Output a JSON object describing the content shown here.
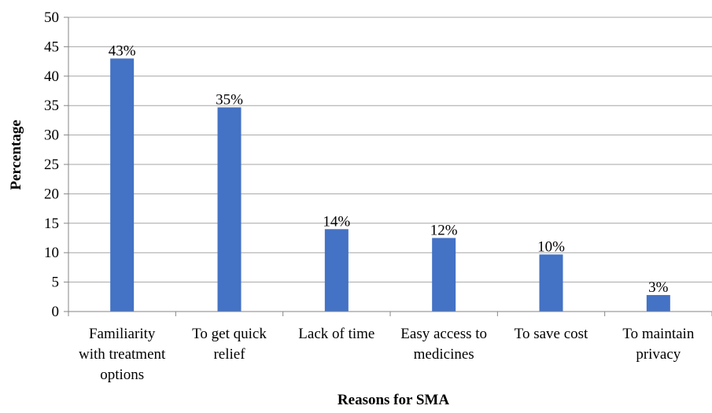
{
  "chart_data": {
    "type": "bar",
    "categories": [
      [
        "Familiarity",
        "with treatment",
        "options"
      ],
      [
        "To get quick",
        "relief"
      ],
      [
        "Lack of time"
      ],
      [
        "Easy access to",
        "medicines"
      ],
      [
        "To save cost"
      ],
      [
        "To maintain",
        "privacy"
      ]
    ],
    "values": [
      43,
      34.7,
      14,
      12.5,
      9.7,
      2.8
    ],
    "data_labels": [
      "43%",
      "35%",
      "14%",
      "12%",
      "10%",
      "3%"
    ],
    "title": "",
    "xlabel": "Reasons for SMA",
    "ylabel": "Percentage",
    "ylim": [
      0,
      50
    ],
    "yticks": [
      "0",
      "5",
      "10",
      "15",
      "20",
      "25",
      "30",
      "35",
      "40",
      "45",
      "50"
    ],
    "grid": true,
    "legend": "none",
    "colors": {
      "bar": "#4472C4",
      "grid": "#A6A6A6",
      "axis": "#868686"
    }
  }
}
